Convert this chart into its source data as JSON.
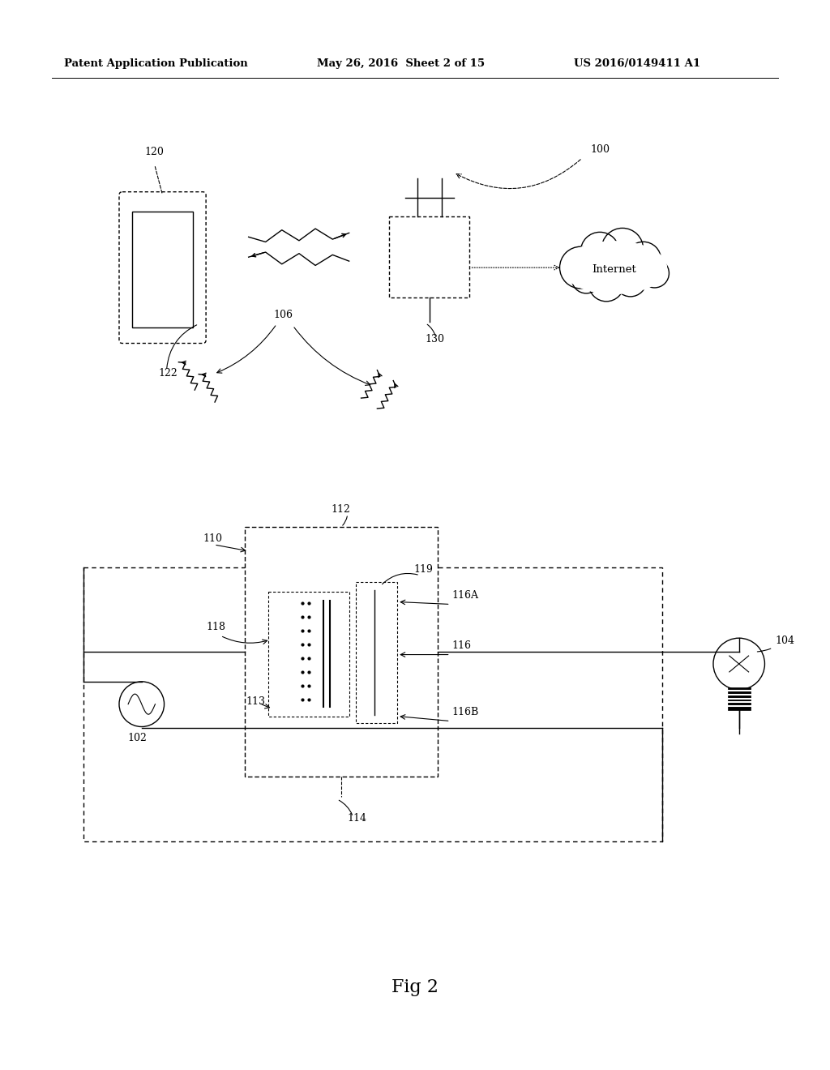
{
  "bg_color": "#ffffff",
  "header_left": "Patent Application Publication",
  "header_center": "May 26, 2016  Sheet 2 of 15",
  "header_right": "US 2016/0149411 A1",
  "fig_label": "Fig 2"
}
